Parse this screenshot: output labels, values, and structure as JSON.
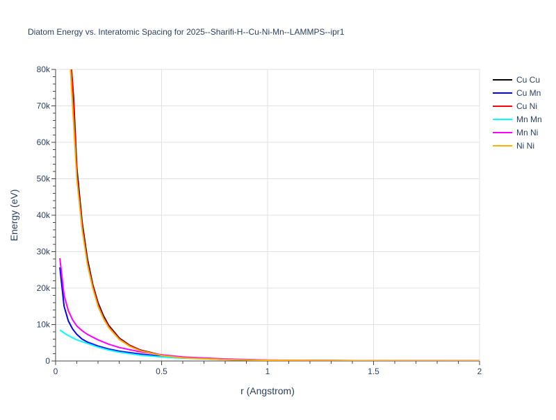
{
  "chart_data": {
    "type": "line",
    "title": "Diatom Energy vs. Interatomic Spacing for 2025--Sharifi-H--Cu-Ni-Mn--LAMMPS--ipr1",
    "xlabel": "r (Angstrom)",
    "ylabel": "Energy (eV)",
    "xlim": [
      0,
      2
    ],
    "ylim": [
      0,
      80000
    ],
    "x_ticks": [
      {
        "value": 0,
        "label": "0"
      },
      {
        "value": 0.5,
        "label": "0.5"
      },
      {
        "value": 1,
        "label": "1"
      },
      {
        "value": 1.5,
        "label": "1.5"
      },
      {
        "value": 2,
        "label": "2"
      }
    ],
    "y_ticks": [
      {
        "value": 0,
        "label": "0"
      },
      {
        "value": 10000,
        "label": "10k"
      },
      {
        "value": 20000,
        "label": "20k"
      },
      {
        "value": 30000,
        "label": "30k"
      },
      {
        "value": 40000,
        "label": "40k"
      },
      {
        "value": 50000,
        "label": "50k"
      },
      {
        "value": 60000,
        "label": "60k"
      },
      {
        "value": 70000,
        "label": "70k"
      },
      {
        "value": 80000,
        "label": "80k"
      }
    ],
    "grid": true,
    "legend_position": "right",
    "series": [
      {
        "name": "Cu Cu",
        "color": "#000000",
        "x": [
          0.075,
          0.085,
          0.1,
          0.125,
          0.15,
          0.175,
          0.2,
          0.225,
          0.25,
          0.3,
          0.35,
          0.4,
          0.5,
          0.6,
          0.8,
          1.0,
          1.5,
          2.0
        ],
        "y": [
          80000,
          72000,
          53000,
          38000,
          28000,
          21000,
          16000,
          12500,
          9800,
          6300,
          4300,
          3000,
          1600,
          900,
          400,
          200,
          60,
          20
        ]
      },
      {
        "name": "Cu Mn",
        "color": "#0000ff",
        "x": [
          0.02,
          0.04,
          0.06,
          0.08,
          0.1,
          0.125,
          0.15,
          0.2,
          0.25,
          0.3,
          0.4,
          0.5,
          0.6,
          0.8,
          1.0,
          1.5,
          2.0
        ],
        "y": [
          25700,
          15000,
          11000,
          8800,
          7300,
          6000,
          5200,
          4100,
          3300,
          2700,
          1900,
          1300,
          900,
          450,
          200,
          60,
          20
        ]
      },
      {
        "name": "Cu Ni",
        "color": "#ff0000",
        "x": [
          0.075,
          0.085,
          0.1,
          0.125,
          0.15,
          0.175,
          0.2,
          0.225,
          0.25,
          0.3,
          0.35,
          0.4,
          0.5,
          0.6,
          0.8,
          1.0,
          1.5,
          2.0
        ],
        "y": [
          80000,
          70000,
          51000,
          37000,
          27000,
          20500,
          15500,
          12000,
          9500,
          6100,
          4200,
          2900,
          1550,
          880,
          390,
          190,
          55,
          18
        ]
      },
      {
        "name": "Mn Mn",
        "color": "#00ffff",
        "x": [
          0.02,
          0.05,
          0.075,
          0.1,
          0.15,
          0.2,
          0.25,
          0.3,
          0.4,
          0.5,
          0.6,
          0.8,
          1.0,
          1.5,
          2.0
        ],
        "y": [
          8500,
          7300,
          6500,
          5800,
          4800,
          3800,
          3000,
          2400,
          1600,
          1100,
          750,
          380,
          180,
          50,
          15
        ]
      },
      {
        "name": "Mn Ni",
        "color": "#ff00ff",
        "x": [
          0.02,
          0.04,
          0.06,
          0.08,
          0.1,
          0.125,
          0.15,
          0.2,
          0.25,
          0.3,
          0.4,
          0.5,
          0.6,
          0.8,
          0.9,
          1.0,
          1.5,
          2.0
        ],
        "y": [
          28200,
          18000,
          13800,
          11300,
          9600,
          8300,
          7300,
          5800,
          4600,
          3700,
          2500,
          1700,
          1100,
          550,
          400,
          250,
          70,
          20
        ]
      },
      {
        "name": "Ni Ni",
        "color": "#ffb000",
        "x": [
          0.07,
          0.08,
          0.1,
          0.125,
          0.15,
          0.175,
          0.2,
          0.225,
          0.25,
          0.3,
          0.35,
          0.4,
          0.5,
          0.6,
          0.8,
          1.0,
          1.5,
          2.0
        ],
        "y": [
          80000,
          70000,
          50000,
          36000,
          26500,
          20000,
          15000,
          11700,
          9200,
          5900,
          4000,
          2800,
          1500,
          850,
          380,
          180,
          50,
          15
        ]
      }
    ]
  }
}
